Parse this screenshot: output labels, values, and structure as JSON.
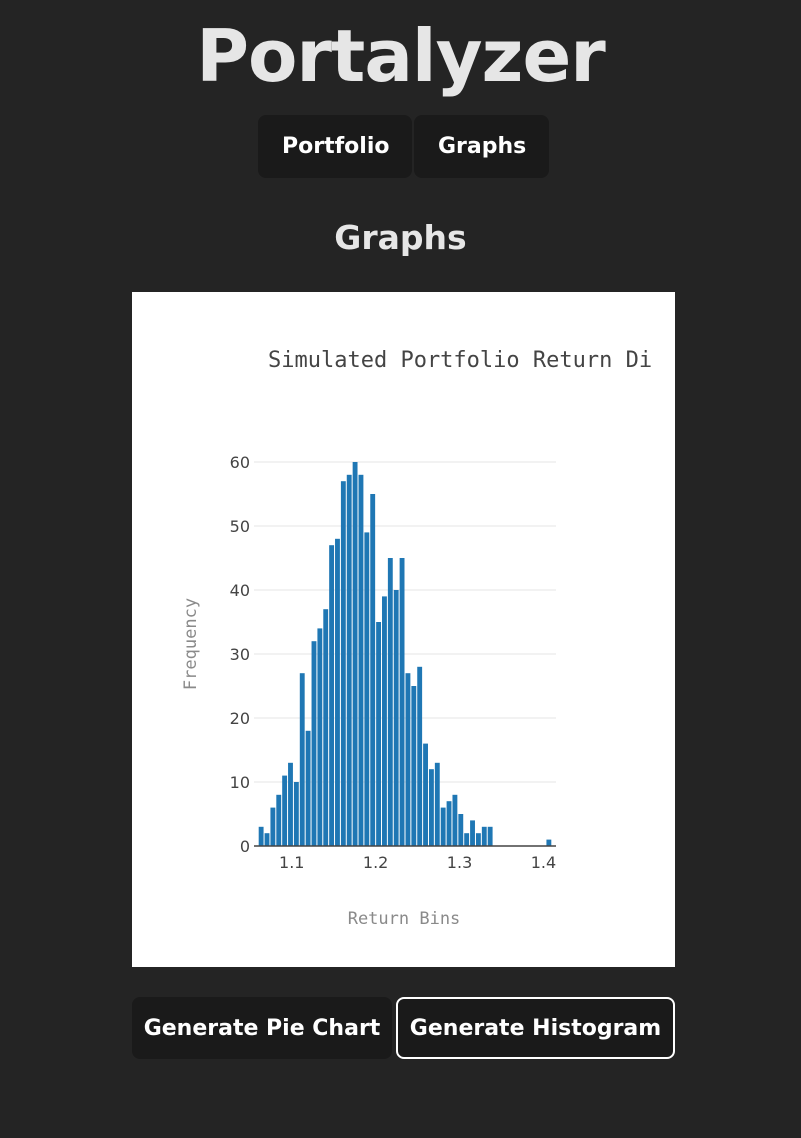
{
  "app": {
    "title": "Portalyzer"
  },
  "nav": {
    "portfolio_label": "Portfolio",
    "graphs_label": "Graphs"
  },
  "section": {
    "title": "Graphs"
  },
  "actions": {
    "pie_label": "Generate Pie Chart",
    "histogram_label": "Generate Histogram"
  },
  "chart_data": {
    "type": "bar",
    "title": "Simulated Portfolio Return Di",
    "xlabel": "Return Bins",
    "ylabel": "Frequency",
    "bar_color": "#1f77b4",
    "grid": true,
    "xlim": [
      1.055,
      1.415
    ],
    "ylim": [
      0,
      60
    ],
    "xticks": [
      1.1,
      1.2,
      1.3,
      1.4
    ],
    "xtick_labels": [
      "1.1",
      "1.2",
      "1.3",
      "1.4"
    ],
    "yticks": [
      0,
      10,
      20,
      30,
      40,
      50,
      60
    ],
    "yticks_labels": [
      "0",
      "10",
      "20",
      "30",
      "40",
      "50",
      "60"
    ],
    "bin_width": 0.007,
    "x": [
      1.0635,
      1.0705,
      1.0775,
      1.0845,
      1.0915,
      1.0985,
      1.1055,
      1.1125,
      1.1195,
      1.1265,
      1.1335,
      1.1405,
      1.1475,
      1.1545,
      1.1615,
      1.1685,
      1.1755,
      1.1825,
      1.1895,
      1.1965,
      1.2035,
      1.2105,
      1.2175,
      1.2245,
      1.2315,
      1.2385,
      1.2455,
      1.2525,
      1.2595,
      1.2665,
      1.2735,
      1.2805,
      1.2875,
      1.2945,
      1.3015,
      1.3085,
      1.3155,
      1.3225,
      1.3295,
      1.3365,
      1.4065
    ],
    "values": [
      3,
      2,
      6,
      8,
      11,
      13,
      10,
      27,
      18,
      32,
      34,
      37,
      47,
      48,
      57,
      58,
      60,
      58,
      49,
      55,
      35,
      39,
      45,
      40,
      45,
      27,
      25,
      28,
      16,
      12,
      13,
      6,
      7,
      8,
      5,
      2,
      4,
      2,
      3,
      3,
      1
    ]
  }
}
